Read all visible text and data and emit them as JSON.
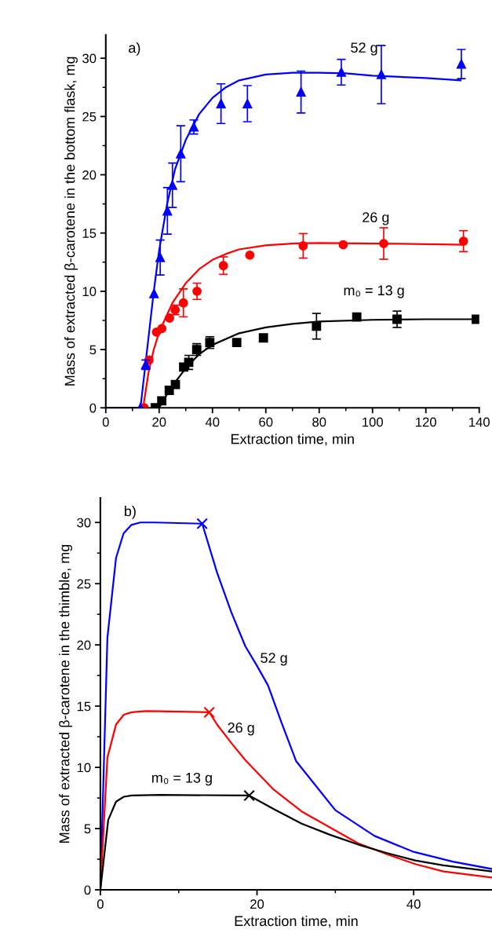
{
  "chart_data": [
    {
      "type": "scatter",
      "xlabel": "Extraction time, min",
      "ylabel": "Mass of extracted β-carotene in the bottom flask, mg",
      "xlim": [
        0,
        140
      ],
      "xticks": [
        0,
        20,
        40,
        60,
        80,
        100,
        120,
        140
      ],
      "ylim": [
        0,
        32
      ],
      "yticks": [
        0,
        5,
        10,
        15,
        20,
        25,
        30
      ],
      "grid": false,
      "legend": false,
      "annotations": [
        "a)",
        "52 g",
        "26 g",
        "m₀ = 13 g"
      ],
      "series": [
        {
          "type": "line",
          "color": "#000000",
          "marker": "none",
          "x": [
            20,
            22,
            25,
            30,
            35,
            40,
            50,
            60,
            70,
            80,
            100,
            120,
            138
          ],
          "values": [
            0,
            0.8,
            1.9,
            3.4,
            4.6,
            5.4,
            6.4,
            6.9,
            7.2,
            7.4,
            7.55,
            7.6,
            7.6
          ]
        },
        {
          "type": "line",
          "color": "#ff0000",
          "marker": "none",
          "x": [
            0,
            14,
            16,
            18,
            20,
            25,
            30,
            35,
            40,
            45,
            50,
            60,
            70,
            80,
            100,
            120,
            134
          ],
          "values": [
            0,
            0,
            3,
            5,
            6.5,
            9,
            10.7,
            11.9,
            12.7,
            13.2,
            13.6,
            13.95,
            14.1,
            14.15,
            14.1,
            14.05,
            14.0
          ]
        },
        {
          "type": "line",
          "color": "#0000ff",
          "marker": "none",
          "x": [
            0,
            13,
            15,
            18,
            20,
            23,
            26,
            30,
            35,
            40,
            45,
            50,
            60,
            70,
            80,
            90,
            100,
            120,
            133
          ],
          "values": [
            0,
            0,
            4,
            10,
            13.5,
            17.5,
            20.5,
            23,
            25.2,
            26.6,
            27.5,
            28.1,
            28.6,
            28.75,
            28.75,
            28.7,
            28.5,
            28.3,
            28.1
          ]
        },
        {
          "color": "#000000",
          "marker": "square",
          "x": [
            18.6,
            21,
            23.8,
            26.1,
            29.2,
            31.1,
            34.1,
            39,
            49.1,
            59.1,
            79,
            94.1,
            109.2,
            138.9
          ],
          "values": [
            0,
            0.6,
            1.5,
            2.0,
            3.5,
            3.9,
            5.0,
            5.6,
            5.6,
            6.0,
            7.0,
            7.8,
            7.6,
            7.6
          ],
          "errors": [
            null,
            0.3,
            null,
            null,
            0.3,
            0.6,
            0.5,
            0.5,
            null,
            null,
            1.1,
            null,
            0.7,
            null
          ]
        },
        {
          "color": "#ff0000",
          "marker": "circle",
          "x": [
            14.4,
            16.2,
            19,
            21,
            23.9,
            26,
            29.1,
            34.2,
            44.1,
            54,
            74,
            89,
            104.2,
            134.1
          ],
          "values": [
            0,
            4.1,
            6.5,
            6.8,
            7.7,
            8.4,
            9.0,
            10.0,
            12.2,
            13.1,
            13.9,
            14.0,
            14.1,
            14.3
          ],
          "errors": [
            null,
            null,
            null,
            null,
            null,
            0.4,
            1.2,
            0.7,
            0.75,
            null,
            1.05,
            null,
            1.35,
            0.9
          ]
        },
        {
          "color": "#0000ff",
          "marker": "triangle",
          "x": [
            13,
            15,
            18.1,
            20.4,
            23.1,
            25,
            28.1,
            33,
            43.2,
            53.1,
            73.2,
            88.3,
            103.3,
            133.3
          ],
          "values": [
            0,
            3.7,
            9.8,
            12.9,
            16.9,
            19.1,
            21.8,
            24.1,
            26.1,
            26.1,
            27.1,
            28.8,
            28.6,
            29.5
          ],
          "errors": [
            null,
            0.4,
            null,
            1.5,
            2.0,
            1.9,
            2.4,
            0.6,
            1.7,
            1.55,
            1.8,
            1.1,
            2.5,
            1.25
          ]
        }
      ]
    },
    {
      "type": "line",
      "xlabel": "Extraction time, min",
      "ylabel": "Mass of extracted β-carotene in the thimble, mg",
      "xlim": [
        0,
        50
      ],
      "xticks": [
        0,
        20,
        40
      ],
      "ylim": [
        0,
        32
      ],
      "yticks": [
        0,
        5,
        10,
        15,
        20,
        25,
        30
      ],
      "grid": false,
      "legend": false,
      "annotations": [
        "b)",
        "52 g",
        "26 g",
        "m₀ = 13 g"
      ],
      "series": [
        {
          "color": "#0000ff",
          "marker": "none",
          "x": [
            0,
            0.9,
            2.0,
            2.96,
            3.97,
            5.1,
            6.9,
            13.0,
            14.9,
            16.7,
            18.5,
            19.9,
            21.4,
            23.1,
            25,
            30,
            35,
            40,
            45,
            50
          ],
          "values": [
            0,
            20.6,
            27.1,
            29.1,
            29.8,
            30,
            30,
            29.9,
            25.9,
            22.7,
            19.9,
            18.4,
            16.7,
            13.7,
            10.5,
            6.5,
            4.4,
            3.1,
            2.3,
            1.7
          ]
        },
        {
          "color": "#ff0000",
          "marker": "none",
          "x": [
            0,
            0.9,
            2,
            3,
            4,
            5.9,
            13.9,
            14.9,
            16.7,
            18.5,
            20.3,
            22.1,
            25.7,
            29.3,
            32.9,
            36.6,
            40.2,
            43.8,
            50
          ],
          "values": [
            0,
            10.8,
            13.5,
            14.3,
            14.5,
            14.6,
            14.5,
            13.5,
            12.0,
            10.6,
            9.4,
            8.2,
            6.4,
            5.1,
            3.8,
            2.9,
            2.1,
            1.5,
            1.0
          ]
        },
        {
          "color": "#000000",
          "marker": "none",
          "x": [
            0,
            1,
            2,
            3,
            4,
            7.7,
            19,
            22.1,
            25.7,
            29.3,
            32.9,
            36.6,
            40.2,
            43.8,
            50
          ],
          "values": [
            0,
            5.7,
            7.2,
            7.6,
            7.7,
            7.75,
            7.7,
            6.6,
            5.4,
            4.5,
            3.7,
            3.0,
            2.4,
            2.0,
            1.5
          ]
        },
        {
          "type": "scatter",
          "color": "#0000ff",
          "marker": "cross",
          "x": [
            13.0
          ],
          "values": [
            29.9
          ]
        },
        {
          "type": "scatter",
          "color": "#ff0000",
          "marker": "cross",
          "x": [
            13.9
          ],
          "values": [
            14.5
          ]
        },
        {
          "type": "scatter",
          "color": "#000000",
          "marker": "cross",
          "x": [
            19
          ],
          "values": [
            7.7
          ]
        }
      ]
    }
  ]
}
